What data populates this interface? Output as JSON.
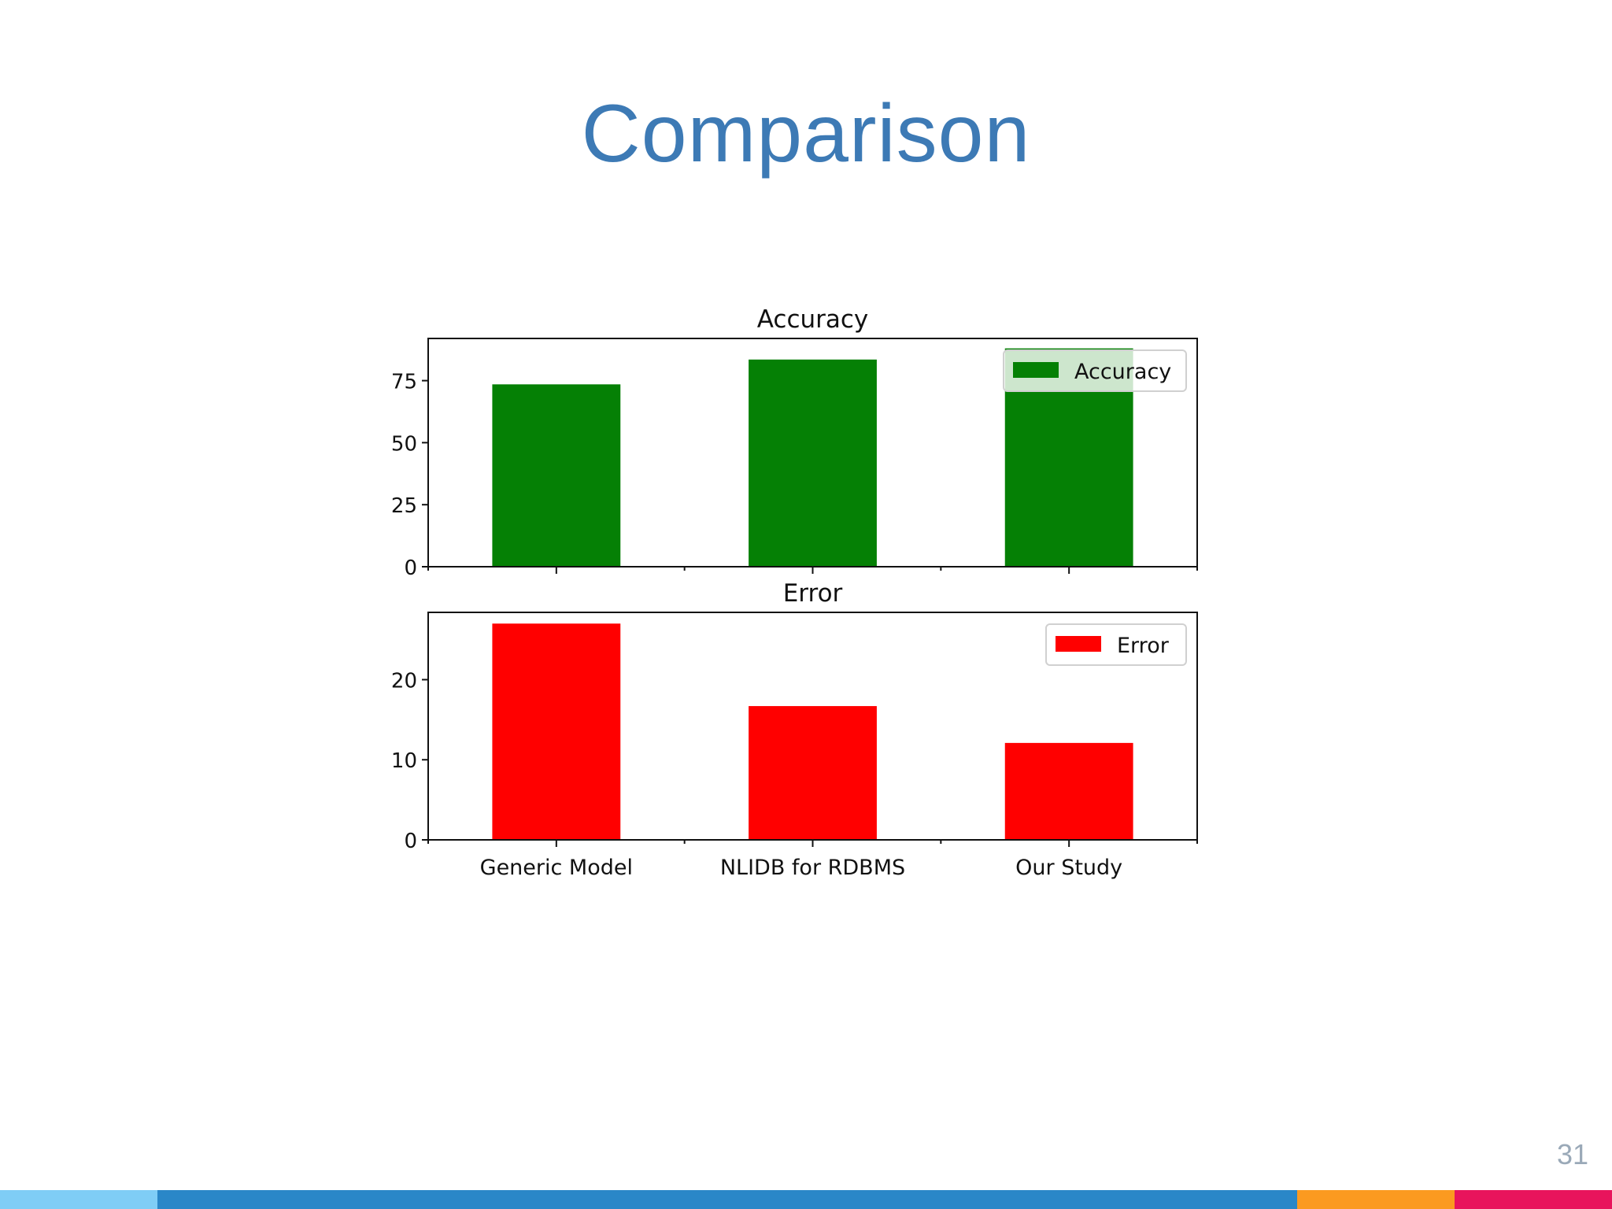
{
  "slide": {
    "title": "Comparison",
    "page_number": "31"
  },
  "colors": {
    "title": "#3d7ab5",
    "accuracy_bar": "#058005",
    "error_bar": "#ff0000",
    "bar_light_blue": "#7fcdf6",
    "bar_blue": "#2a87c8",
    "bar_orange": "#fb9a20",
    "bar_pink": "#e8145c"
  },
  "chart_data": [
    {
      "type": "bar",
      "title": "Accuracy",
      "categories": [
        "Generic Model",
        "NLIDB for RDBMS",
        "Our Study"
      ],
      "series": [
        {
          "name": "Accuracy",
          "values": [
            73.5,
            83.5,
            88
          ]
        }
      ],
      "ylim": [
        0,
        92
      ],
      "yticks": [
        0,
        25,
        50,
        75
      ],
      "legend": "top-right",
      "grid": false
    },
    {
      "type": "bar",
      "title": "Error",
      "categories": [
        "Generic Model",
        "NLIDB for RDBMS",
        "Our Study"
      ],
      "series": [
        {
          "name": "Error",
          "values": [
            27,
            16.7,
            12.1
          ]
        }
      ],
      "ylim": [
        0,
        28.4
      ],
      "yticks": [
        0,
        10,
        20
      ],
      "legend": "top-right",
      "grid": false
    }
  ]
}
